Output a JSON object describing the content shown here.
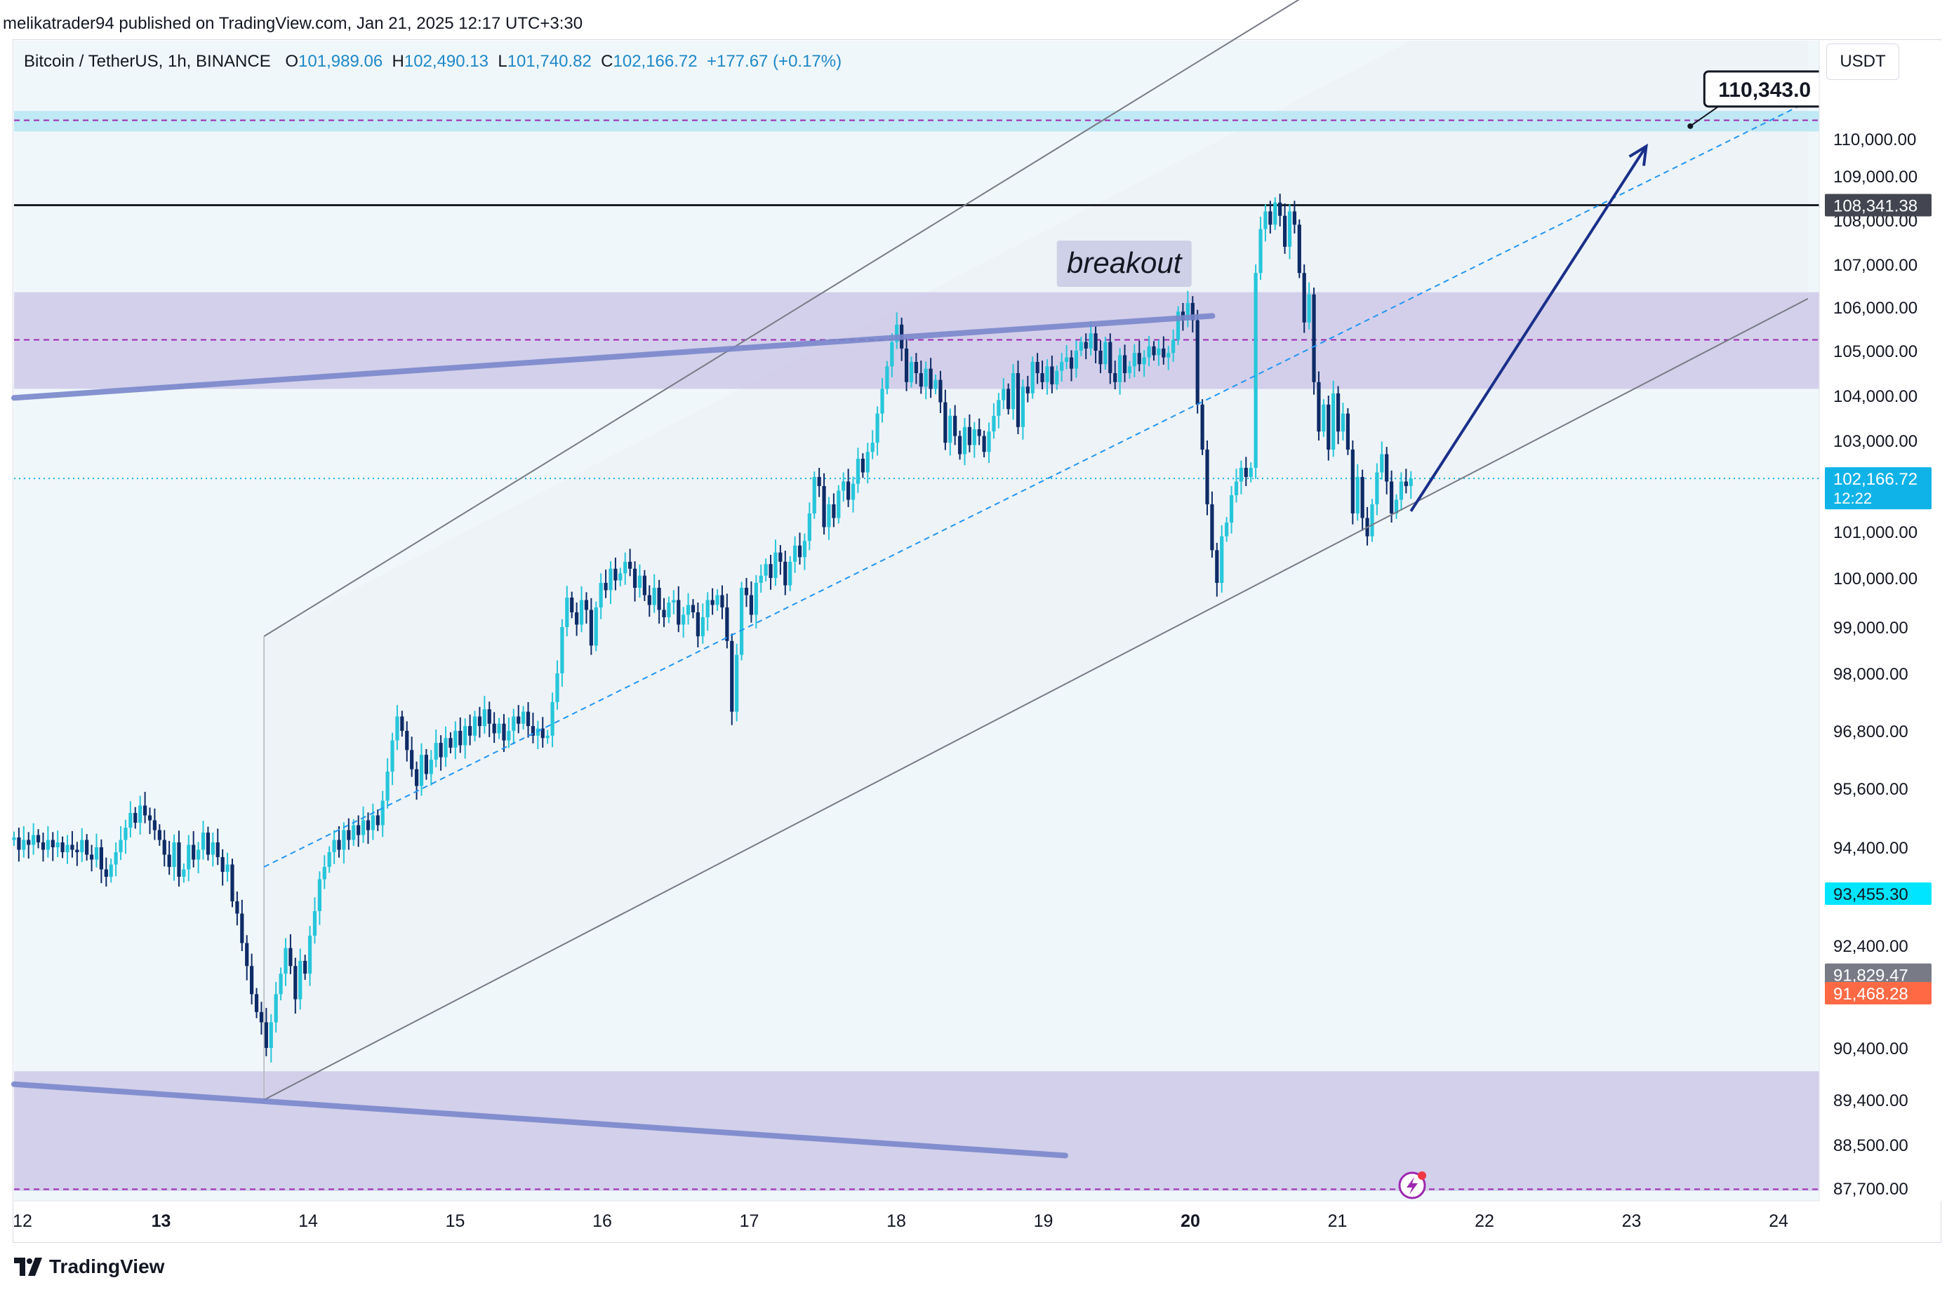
{
  "header": {
    "published_by": "melikatrader94 published on TradingView.com, Jan 21, 2025 12:17 UTC+3:30"
  },
  "symbol": {
    "name": "Bitcoin / TetherUS, 1h, BINANCE",
    "open_label": "O",
    "open": "101,989.06",
    "high_label": "H",
    "high": "102,490.13",
    "low_label": "L",
    "low": "101,740.82",
    "close_label": "C",
    "close": "102,166.72",
    "change": "+177.67 (+0.17%)"
  },
  "currency_button": "USDT",
  "footer": {
    "brand": "TradingView"
  },
  "colors": {
    "bull": "#26c6da",
    "bear": "#0d2b66",
    "zone": "#c9c3e6",
    "channel_fill": "#eef3f7",
    "arrow": "#1a2f8a",
    "price_tag": "#10b3e8"
  },
  "chart_data": {
    "type": "candlestick",
    "title": "Bitcoin / TetherUS, 1h, BINANCE",
    "x_axis": {
      "ticks": [
        {
          "day": 12,
          "label": "12",
          "bold": false
        },
        {
          "day": 13,
          "label": "13",
          "bold": true
        },
        {
          "day": 14,
          "label": "14",
          "bold": false
        },
        {
          "day": 15,
          "label": "15",
          "bold": false
        },
        {
          "day": 16,
          "label": "16",
          "bold": false
        },
        {
          "day": 17,
          "label": "17",
          "bold": false
        },
        {
          "day": 18,
          "label": "18",
          "bold": false
        },
        {
          "day": 19,
          "label": "19",
          "bold": false
        },
        {
          "day": 20,
          "label": "20",
          "bold": true
        },
        {
          "day": 21,
          "label": "21",
          "bold": false
        },
        {
          "day": 22,
          "label": "22",
          "bold": false
        },
        {
          "day": 23,
          "label": "23",
          "bold": false
        },
        {
          "day": 24,
          "label": "24",
          "bold": false
        }
      ]
    },
    "y_axis": {
      "ticks": [
        {
          "v": 110000,
          "label": "110,000.00"
        },
        {
          "v": 109000,
          "label": "109,000.00"
        },
        {
          "v": 108000,
          "label": "108,000.00"
        },
        {
          "v": 107000,
          "label": "107,000.00"
        },
        {
          "v": 106000,
          "label": "106,000.00"
        },
        {
          "v": 105000,
          "label": "105,000.00"
        },
        {
          "v": 104000,
          "label": "104,000.00"
        },
        {
          "v": 103000,
          "label": "103,000.00"
        },
        {
          "v": 101000,
          "label": "101,000.00"
        },
        {
          "v": 100000,
          "label": "100,000.00"
        },
        {
          "v": 99000,
          "label": "99,000.00"
        },
        {
          "v": 98000,
          "label": "98,000.00"
        },
        {
          "v": 96800,
          "label": "96,800.00"
        },
        {
          "v": 95600,
          "label": "95,600.00"
        },
        {
          "v": 94400,
          "label": "94,400.00"
        },
        {
          "v": 92400,
          "label": "92,400.00"
        },
        {
          "v": 90400,
          "label": "90,400.00"
        },
        {
          "v": 89400,
          "label": "89,400.00"
        },
        {
          "v": 88500,
          "label": "88,500.00"
        },
        {
          "v": 87700,
          "label": "87,700.00"
        }
      ]
    },
    "price_tags": [
      {
        "v": 108341.38,
        "label": "108,341.38",
        "color": "#434651",
        "text_color": "#ffffff"
      },
      {
        "v": 102166.72,
        "label": "102,166.72",
        "sub": "12:22",
        "color": "#10b3e8",
        "text_color": "#ffffff"
      },
      {
        "v": 93455.3,
        "label": "93,455.30",
        "color": "#00e5ff",
        "text_color": "#131722"
      },
      {
        "v": 91829.47,
        "label": "91,829.47",
        "color": "#787b86",
        "text_color": "#ffffff"
      },
      {
        "v": 91468.28,
        "label": "91,468.28",
        "color": "#ff6a45",
        "text_color": "#ffffff"
      }
    ],
    "target": {
      "label": "110,343.0",
      "v": 110343,
      "day": 23.4
    },
    "annotation": {
      "text": "breakout",
      "day": 19.55,
      "v": 107000
    },
    "resistance_line": 108341.38,
    "last_price_line": 102166.72,
    "upper_zone": [
      104150,
      106350
    ],
    "upper_zone_mid": 105250,
    "lower_zone": [
      87650,
      89950
    ],
    "lower_zone_mid": 87680,
    "top_band": [
      110200,
      110750
    ],
    "top_band_mid": 110500,
    "channel": {
      "lower_start": [
        13.7,
        89400
      ],
      "lower_end": [
        24.2,
        106200
      ],
      "upper_start": [
        13.7,
        98800
      ],
      "upper_end": [
        21.5,
        115600
      ],
      "mid_start": [
        13.7,
        94000
      ],
      "mid_end": [
        24.2,
        111000
      ]
    },
    "trendline_upper": [
      [
        12,
        103950
      ],
      [
        20.15,
        105800
      ]
    ],
    "trendline_lower": [
      [
        12,
        89700
      ],
      [
        19.15,
        88300
      ]
    ],
    "projection_arrow": [
      [
        21.5,
        101450
      ],
      [
        23.1,
        109800
      ]
    ],
    "candles_closes": [
      94600,
      94350,
      94550,
      94450,
      94650,
      94500,
      94350,
      94550,
      94400,
      94500,
      94300,
      94450,
      94350,
      94300,
      94550,
      94250,
      94150,
      94400,
      93950,
      93800,
      94050,
      94300,
      94550,
      94800,
      95100,
      94900,
      95250,
      95050,
      94950,
      94750,
      94550,
      94250,
      94000,
      94500,
      93800,
      93950,
      94450,
      94150,
      94350,
      94700,
      94250,
      94500,
      94200,
      93900,
      94050,
      93300,
      93050,
      92450,
      92000,
      91450,
      91100,
      90900,
      90400,
      90900,
      91450,
      91850,
      92350,
      92000,
      91350,
      92100,
      91850,
      92600,
      93100,
      93750,
      94000,
      94300,
      94550,
      94350,
      94750,
      94550,
      94850,
      94650,
      94950,
      94750,
      95050,
      94850,
      95350,
      95950,
      96600,
      97100,
      96800,
      96400,
      96000,
      95650,
      96300,
      95900,
      96200,
      96550,
      96250,
      96650,
      96450,
      96800,
      96500,
      96900,
      96700,
      97100,
      96900,
      97250,
      96950,
      96750,
      96950,
      96600,
      96800,
      97100,
      96950,
      97200,
      96900,
      96700,
      96850,
      96650,
      96700,
      97400,
      98000,
      99000,
      99600,
      99300,
      99050,
      99550,
      99350,
      98600,
      99400,
      99900,
      99750,
      100200,
      99950,
      100100,
      100350,
      100200,
      99800,
      100050,
      99650,
      99450,
      99800,
      99350,
      99200,
      99500,
      99550,
      99050,
      99250,
      99450,
      99300,
      98800,
      99200,
      99550,
      99450,
      99650,
      99400,
      98700,
      97200,
      98400,
      99800,
      99650,
      99250,
      99900,
      100050,
      100300,
      100000,
      100550,
      100350,
      99850,
      100350,
      100700,
      100450,
      100800,
      101400,
      102200,
      102000,
      101100,
      101600,
      101300,
      101900,
      102100,
      101700,
      102050,
      102600,
      102300,
      102750,
      102950,
      103600,
      104150,
      104650,
      105200,
      105600,
      105050,
      104300,
      104750,
      104500,
      104200,
      104600,
      104150,
      104350,
      103850,
      102950,
      103550,
      103100,
      102700,
      103300,
      102900,
      103250,
      103100,
      102750,
      103200,
      103550,
      103900,
      104150,
      103700,
      104500,
      103300,
      104200,
      104050,
      104750,
      104500,
      104300,
      104650,
      104250,
      104550,
      104750,
      104850,
      104600,
      105000,
      105200,
      105050,
      105400,
      105000,
      104700,
      105200,
      104500,
      104300,
      104900,
      104500,
      104650,
      104950,
      104700,
      104850,
      105100,
      104900,
      105050,
      104850,
      104950,
      105250,
      105900,
      105700,
      106100,
      105700,
      103800,
      102800,
      101600,
      100600,
      99900,
      100900,
      101200,
      101800,
      102100,
      102400,
      102200,
      102400,
      106800,
      107800,
      108200,
      107900,
      108400,
      108100,
      107400,
      108200,
      107900,
      106800,
      105650,
      106300,
      104300,
      103200,
      103800,
      102800,
      104050,
      103200,
      103600,
      102800,
      101400,
      102200,
      101300,
      100900,
      101600,
      102300,
      102700,
      102100,
      101400,
      101700,
      102100,
      102000,
      102167
    ]
  }
}
